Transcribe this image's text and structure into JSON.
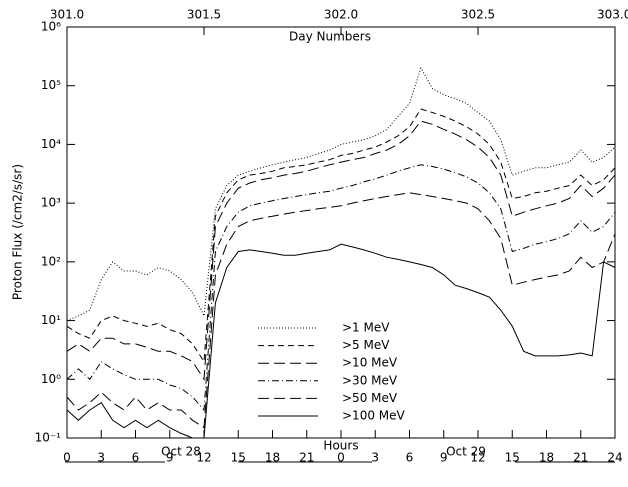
{
  "chart_data": {
    "type": "line",
    "title": "Day Numbers",
    "xlabel": "Hours",
    "ylabel": "Proton Flux (/cm2/s/sr)",
    "date_labels": [
      "Oct 28",
      "Oct 29"
    ],
    "log_y": true,
    "x": [
      0,
      1,
      2,
      3,
      4,
      5,
      6,
      7,
      8,
      9,
      10,
      11,
      12,
      13,
      14,
      15,
      16,
      17,
      18,
      19,
      20,
      21,
      22,
      23,
      24,
      25,
      26,
      27,
      28,
      29,
      30,
      31,
      32,
      33,
      34,
      35,
      36,
      37,
      38,
      39,
      40,
      41,
      42,
      43,
      44,
      45,
      46,
      47,
      48
    ],
    "xlim": [
      0,
      48
    ],
    "xticks": [
      0,
      3,
      6,
      9,
      12,
      15,
      18,
      21,
      {
        "value": 24,
        "label": "0"
      },
      {
        "value": 27,
        "label": "3"
      },
      {
        "value": 30,
        "label": "6"
      },
      {
        "value": 33,
        "label": "9"
      },
      {
        "value": 36,
        "label": "12"
      },
      {
        "value": 39,
        "label": "15"
      },
      {
        "value": 42,
        "label": "18"
      },
      {
        "value": 45,
        "label": "21"
      },
      {
        "value": 48,
        "label": "24"
      }
    ],
    "x2lim": [
      301,
      303
    ],
    "x2ticks": [
      {
        "value": 301,
        "label": "301.0"
      },
      301.5,
      {
        "value": 302,
        "label": "302.0"
      },
      302.5,
      {
        "value": 303,
        "label": "303.0"
      }
    ],
    "ylim": [
      0.1,
      1000000
    ],
    "yticks": [
      {
        "value": 0.1,
        "label": "10⁻¹"
      },
      {
        "value": 1,
        "label": "10⁰"
      },
      {
        "value": 10,
        "label": "10¹"
      },
      {
        "value": 100,
        "label": "10²"
      },
      {
        "value": 1000,
        "label": "10³"
      },
      {
        "value": 10000,
        "label": "10⁴"
      },
      {
        "value": 100000,
        "label": "10⁵"
      },
      {
        "value": 1000000,
        "label": "10⁶"
      }
    ],
    "series": [
      {
        "name": ">1 MeV",
        "color": "#000000",
        "linestyle": "dotted",
        "values": [
          10,
          12,
          15,
          50,
          100,
          70,
          70,
          60,
          80,
          70,
          50,
          30,
          12,
          800,
          2000,
          3000,
          3500,
          4000,
          4500,
          5000,
          5500,
          6000,
          7000,
          8000,
          10000,
          11000,
          12000,
          14000,
          18000,
          30000,
          50000,
          200000,
          90000,
          70000,
          60000,
          50000,
          35000,
          25000,
          12000,
          3000,
          3500,
          4000,
          4000,
          4500,
          5000,
          8000,
          5000,
          6000,
          9000
        ]
      },
      {
        "name": ">5 MeV",
        "color": "#000000",
        "linestyle": "dashed",
        "values": [
          8,
          6,
          5,
          10,
          12,
          10,
          9,
          8,
          9,
          7,
          6,
          4,
          2,
          600,
          1500,
          2500,
          3000,
          3200,
          3500,
          4000,
          4200,
          4500,
          5000,
          5500,
          6500,
          7000,
          8000,
          9000,
          11000,
          14000,
          20000,
          40000,
          35000,
          30000,
          25000,
          20000,
          15000,
          10000,
          5000,
          1200,
          1300,
          1500,
          1600,
          1800,
          2000,
          3000,
          2000,
          2500,
          4000
        ]
      },
      {
        "name": ">10 MeV",
        "color": "#000000",
        "linestyle": "long-dashed",
        "values": [
          3,
          4,
          3,
          5,
          5,
          4,
          4,
          3.5,
          3,
          3,
          2.5,
          2,
          1,
          400,
          1000,
          1800,
          2200,
          2500,
          2700,
          3000,
          3200,
          3500,
          4000,
          4500,
          5000,
          5500,
          6000,
          7000,
          8000,
          10000,
          14000,
          25000,
          22000,
          18000,
          15000,
          12000,
          9000,
          6000,
          3000,
          600,
          700,
          800,
          900,
          1000,
          1200,
          2000,
          1300,
          1800,
          3000
        ]
      },
      {
        "name": ">30 MeV",
        "color": "#000000",
        "linestyle": "dash-dot",
        "values": [
          1,
          1.5,
          1,
          2,
          1.5,
          1.2,
          1,
          1,
          1,
          0.8,
          0.7,
          0.5,
          0.3,
          150,
          400,
          700,
          900,
          1000,
          1100,
          1200,
          1300,
          1400,
          1500,
          1600,
          1800,
          2000,
          2300,
          2600,
          3000,
          3500,
          4000,
          4500,
          4200,
          3800,
          3300,
          2800,
          2200,
          1500,
          800,
          150,
          170,
          200,
          220,
          250,
          300,
          500,
          320,
          400,
          700
        ]
      },
      {
        "name": ">50 MeV",
        "color": "#000000",
        "linestyle": "long-dashed",
        "values": [
          0.5,
          0.3,
          0.4,
          0.6,
          0.4,
          0.3,
          0.5,
          0.3,
          0.4,
          0.3,
          0.3,
          0.2,
          0.15,
          60,
          200,
          400,
          500,
          550,
          600,
          650,
          700,
          750,
          800,
          850,
          900,
          1000,
          1100,
          1200,
          1300,
          1400,
          1500,
          1400,
          1300,
          1200,
          1100,
          1000,
          800,
          500,
          250,
          40,
          45,
          50,
          55,
          60,
          70,
          120,
          80,
          100,
          300
        ]
      },
      {
        "name": ">100 MeV",
        "color": "#000000",
        "linestyle": "solid",
        "values": [
          0.3,
          0.2,
          0.3,
          0.4,
          0.2,
          0.15,
          0.2,
          0.15,
          0.2,
          0.15,
          0.12,
          0.1,
          0.1,
          20,
          80,
          150,
          160,
          150,
          140,
          130,
          130,
          140,
          150,
          160,
          200,
          180,
          160,
          140,
          120,
          110,
          100,
          90,
          80,
          60,
          40,
          35,
          30,
          25,
          15,
          8,
          3,
          2.5,
          2.5,
          2.5,
          2.6,
          2.8,
          2.5,
          100,
          80
        ]
      }
    ]
  }
}
